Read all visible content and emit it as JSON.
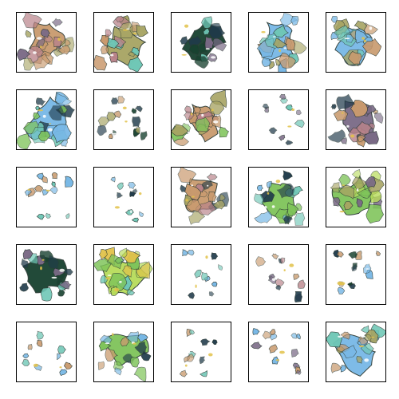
{
  "grid": {
    "rows": 5,
    "cols": 5,
    "palette": {
      "tan": "#c99a6e",
      "rose": "#b9838a",
      "olive": "#a7a463",
      "green": "#7fc45a",
      "lime": "#b7dc5a",
      "sky": "#78b8e6",
      "teal": "#6fc7b6",
      "navy": "#1f3a4a",
      "forest": "#17412f",
      "purple": "#7a6a86",
      "yellow": "#e2c24a",
      "outline": "#2c3a34"
    },
    "tiles": [
      {
        "style": "tan-purple-blob"
      },
      {
        "style": "olive-rose-blob"
      },
      {
        "style": "dark-green-cluster"
      },
      {
        "style": "sky-blue-blob"
      },
      {
        "style": "sky-blue-blob"
      },
      {
        "style": "sky-green-blob"
      },
      {
        "style": "dark-mixed-fragments"
      },
      {
        "style": "tan-rose-blob"
      },
      {
        "style": "sparse-curls"
      },
      {
        "style": "purple-tan-blob"
      },
      {
        "style": "light-blue-fragments"
      },
      {
        "style": "sparse-blue-dots"
      },
      {
        "style": "tan-dark-blob"
      },
      {
        "style": "green-sky-blob"
      },
      {
        "style": "green-olive-blob"
      },
      {
        "style": "dark-forest-blob"
      },
      {
        "style": "lime-green-blob"
      },
      {
        "style": "sparse-blue-streaks"
      },
      {
        "style": "ring-fragments"
      },
      {
        "style": "mixed-ring"
      },
      {
        "style": "thin-blue-streaks"
      },
      {
        "style": "mixed-loose-blob"
      },
      {
        "style": "sparse-tan-marks"
      },
      {
        "style": "blue-tan-swirls"
      },
      {
        "style": "blue-olive-blob"
      }
    ]
  }
}
